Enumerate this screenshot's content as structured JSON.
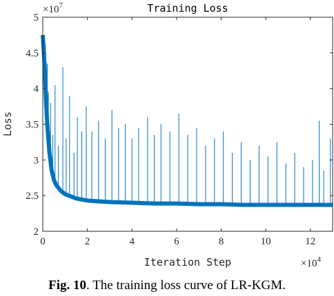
{
  "chart_data": {
    "type": "line",
    "title": "Training Loss",
    "xlabel": "Iteration Step",
    "ylabel": "Loss",
    "x_multiplier": "×10^4",
    "x_multiplier_base": "×10",
    "x_multiplier_exp": "4",
    "y_multiplier_base": "×10",
    "y_multiplier_exp": "7",
    "xlim": [
      0,
      13
    ],
    "ylim": [
      2,
      5
    ],
    "xticks": [
      "0",
      "2",
      "4",
      "6",
      "8",
      "10",
      "12"
    ],
    "yticks": [
      "2",
      "2.5",
      "3",
      "3.5",
      "4",
      "4.5",
      "5"
    ],
    "grid": false,
    "line_color": "#0072BD",
    "series": [
      {
        "x": [
          0,
          0.05,
          0.1,
          0.15,
          0.2,
          0.3,
          0.4,
          0.5,
          0.6,
          0.8,
          1.0,
          1.5,
          2,
          2.5,
          3,
          4,
          5,
          6,
          7,
          8,
          9,
          10,
          11,
          12,
          13
        ],
        "y": [
          4.75,
          4.5,
          4.2,
          3.8,
          3.5,
          3.1,
          2.85,
          2.72,
          2.65,
          2.57,
          2.52,
          2.46,
          2.43,
          2.42,
          2.41,
          2.4,
          2.39,
          2.39,
          2.38,
          2.38,
          2.37,
          2.37,
          2.37,
          2.37,
          2.37
        ],
        "spikes": [
          {
            "x": 0.12,
            "y": 4.6
          },
          {
            "x": 0.2,
            "y": 4.35
          },
          {
            "x": 0.25,
            "y": 3.95
          },
          {
            "x": 0.35,
            "y": 3.8
          },
          {
            "x": 0.45,
            "y": 3.35
          },
          {
            "x": 0.55,
            "y": 4.05
          },
          {
            "x": 0.7,
            "y": 3.2
          },
          {
            "x": 0.9,
            "y": 4.3
          },
          {
            "x": 1.05,
            "y": 3.3
          },
          {
            "x": 1.2,
            "y": 3.9
          },
          {
            "x": 1.4,
            "y": 3.1
          },
          {
            "x": 1.55,
            "y": 3.6
          },
          {
            "x": 1.75,
            "y": 3.4
          },
          {
            "x": 1.95,
            "y": 3.75
          },
          {
            "x": 2.2,
            "y": 3.4
          },
          {
            "x": 2.5,
            "y": 3.55
          },
          {
            "x": 2.8,
            "y": 3.3
          },
          {
            "x": 3.1,
            "y": 3.7
          },
          {
            "x": 3.4,
            "y": 3.45
          },
          {
            "x": 3.7,
            "y": 3.5
          },
          {
            "x": 4.0,
            "y": 3.3
          },
          {
            "x": 4.3,
            "y": 3.45
          },
          {
            "x": 4.7,
            "y": 3.6
          },
          {
            "x": 5.0,
            "y": 3.35
          },
          {
            "x": 5.3,
            "y": 3.5
          },
          {
            "x": 5.7,
            "y": 3.4
          },
          {
            "x": 6.1,
            "y": 3.65
          },
          {
            "x": 6.5,
            "y": 3.35
          },
          {
            "x": 6.9,
            "y": 3.45
          },
          {
            "x": 7.3,
            "y": 3.2
          },
          {
            "x": 7.7,
            "y": 3.3
          },
          {
            "x": 8.1,
            "y": 3.4
          },
          {
            "x": 8.5,
            "y": 3.1
          },
          {
            "x": 8.9,
            "y": 3.25
          },
          {
            "x": 9.3,
            "y": 3.0
          },
          {
            "x": 9.7,
            "y": 3.2
          },
          {
            "x": 10.1,
            "y": 3.05
          },
          {
            "x": 10.5,
            "y": 3.25
          },
          {
            "x": 10.9,
            "y": 2.95
          },
          {
            "x": 11.3,
            "y": 3.1
          },
          {
            "x": 11.7,
            "y": 2.9
          },
          {
            "x": 12.1,
            "y": 3.0
          },
          {
            "x": 12.4,
            "y": 3.55
          },
          {
            "x": 12.6,
            "y": 2.85
          },
          {
            "x": 12.9,
            "y": 3.3
          }
        ]
      }
    ]
  },
  "caption": {
    "prefix": "Fig. 10",
    "text": ". The training loss curve of LR-KGM."
  }
}
